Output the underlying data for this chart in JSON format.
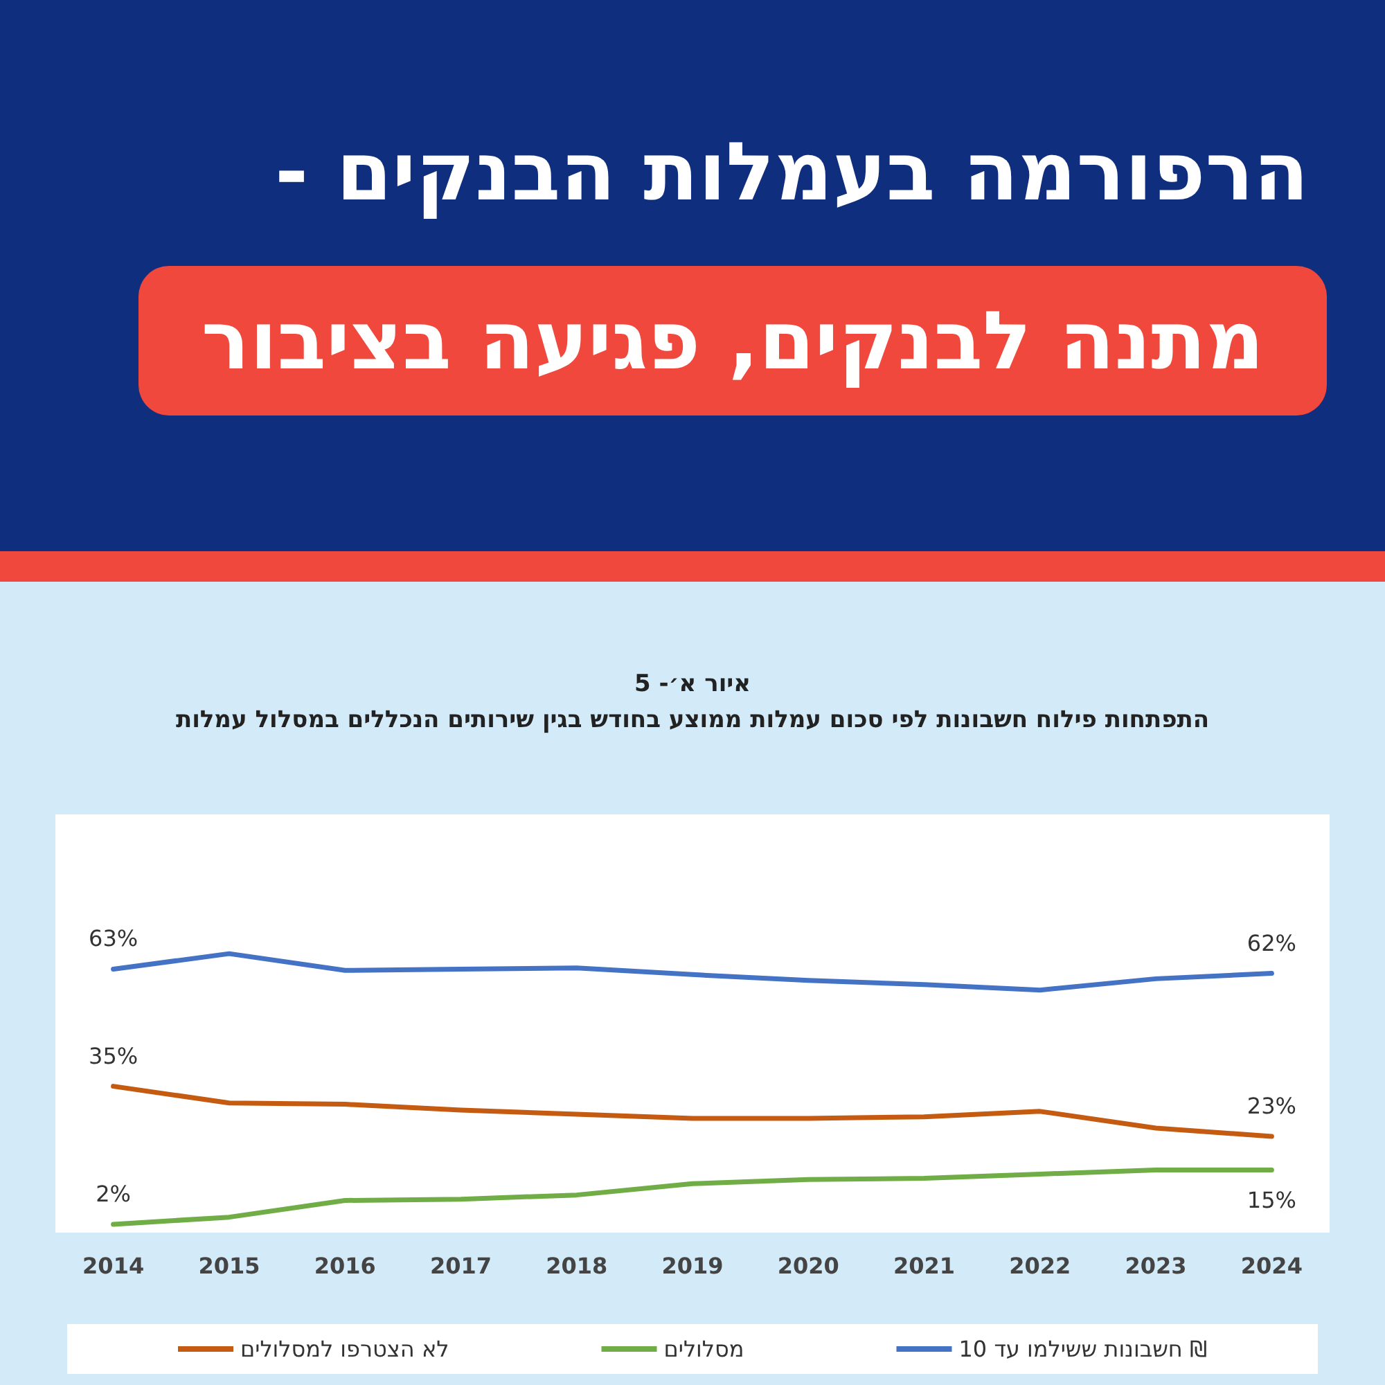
{
  "chart_data": {
    "type": "line",
    "title": "הרפורמה בעמלות הבנקים -",
    "subtitle": "מתנה לבנקים, פגיעה בציבור",
    "annotations": [
      "איור א׳- 5",
      "התפתחות פילוח חשבונות לפי סכום עמלות ממוצע בחודש בגין שירותים הנכללים במסלול עמלות"
    ],
    "categories": [
      "2014",
      "2015",
      "2016",
      "2017",
      "2018",
      "2019",
      "2020",
      "2021",
      "2022",
      "2023",
      "2024"
    ],
    "ylim": [
      0,
      100
    ],
    "series": [
      {
        "name": "חשבונות ששילמו עד 10 ₪",
        "color": "#4472c4",
        "values": [
          63,
          66.7,
          62.7,
          63,
          63.3,
          61.7,
          60.3,
          59.3,
          58,
          60.7,
          62
        ],
        "value_labels": [
          "63%",
          null,
          null,
          null,
          null,
          null,
          null,
          null,
          null,
          null,
          "62%"
        ]
      },
      {
        "name": "מסלולים",
        "color": "#70ad47",
        "values": [
          2,
          3.7,
          7.7,
          8,
          9,
          11.7,
          12.7,
          13,
          14,
          15,
          15
        ],
        "value_labels": [
          "2%",
          null,
          null,
          null,
          null,
          null,
          null,
          null,
          null,
          null,
          "15%"
        ]
      },
      {
        "name": "לא הצטרפו למסלולים",
        "color": "#c55a11",
        "values": [
          35,
          31,
          30.7,
          29.3,
          28.3,
          27.3,
          27.3,
          27.7,
          29,
          25,
          23
        ],
        "value_labels": [
          "35%",
          null,
          null,
          null,
          null,
          null,
          null,
          null,
          null,
          null,
          "23%"
        ]
      }
    ],
    "marker": "none",
    "line_style": "solid",
    "grid": false,
    "legend": "bottom"
  }
}
